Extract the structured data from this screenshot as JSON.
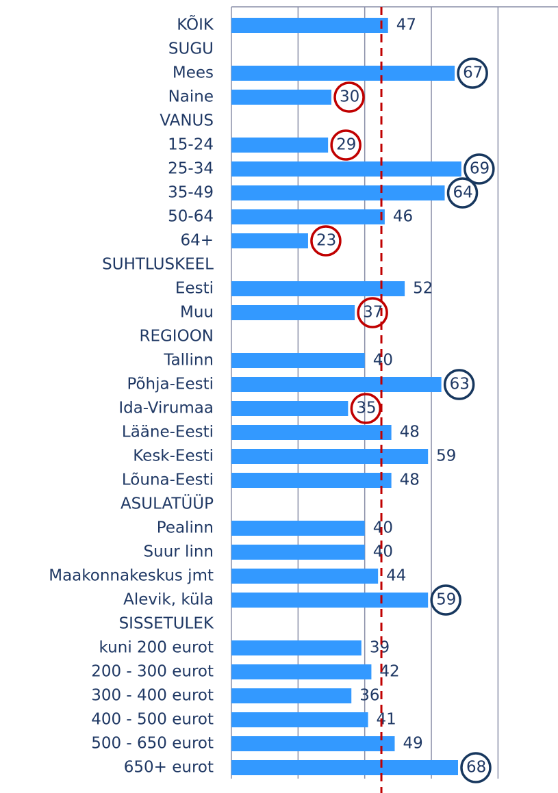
{
  "chart_data": {
    "type": "bar",
    "orientation": "horizontal",
    "categories": [
      "KÕIK",
      "SUGU",
      "Mees",
      "Naine",
      "VANUS",
      "15-24",
      "25-34",
      "35-49",
      "50-64",
      "64+",
      "SUHTLUSKEEL",
      "Eesti",
      "Muu",
      "REGIOON",
      "Tallinn",
      "Põhja-Eesti",
      "Ida-Virumaa",
      "Lääne-Eesti",
      "Kesk-Eesti",
      "Lõuna-Eesti",
      "ASULATÜÜP",
      "Pealinn",
      "Suur linn",
      "Maakonnakeskus jmt",
      "Alevik, küla",
      "SISSETULEK",
      "kuni 200 eurot",
      "200 - 300 eurot",
      "300 - 400 eurot",
      "400 - 500 eurot",
      "500 - 650 eurot",
      "650+ eurot"
    ],
    "values": [
      47,
      null,
      67,
      30,
      null,
      29,
      69,
      64,
      46,
      23,
      null,
      52,
      37,
      null,
      40,
      63,
      35,
      48,
      59,
      48,
      null,
      40,
      40,
      44,
      59,
      null,
      39,
      42,
      36,
      41,
      49,
      68
    ],
    "circle_colors": [
      null,
      null,
      "#17375e",
      "#c00000",
      null,
      "#c00000",
      "#17375e",
      "#17375e",
      null,
      "#c00000",
      null,
      null,
      "#c00000",
      null,
      null,
      "#17375e",
      "#c00000",
      null,
      null,
      null,
      null,
      null,
      null,
      null,
      "#17375e",
      null,
      null,
      null,
      null,
      null,
      null,
      "#17375e"
    ],
    "color": "#3399ff",
    "xlim": [
      0,
      98
    ],
    "xticks": [
      0,
      20,
      40,
      60,
      80
    ],
    "grid": true,
    "reference_line": 45,
    "reference_color": "#c00000"
  }
}
